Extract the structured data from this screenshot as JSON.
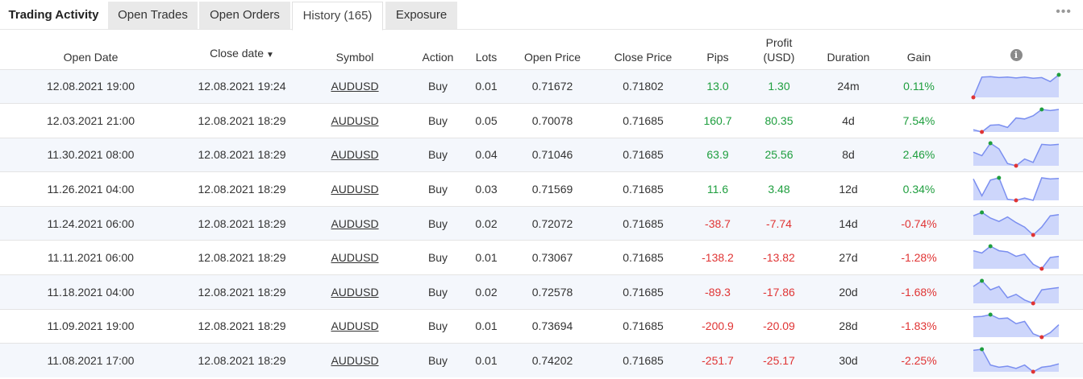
{
  "tabs": {
    "title": "Trading Activity",
    "items": [
      {
        "label": "Open Trades"
      },
      {
        "label": "Open Orders"
      },
      {
        "label": "History (165)"
      },
      {
        "label": "Exposure"
      }
    ],
    "more_icon": "more-dots-icon"
  },
  "columns": {
    "open_date": "Open Date",
    "close_date": "Close date",
    "sort_indicator": "▼",
    "symbol": "Symbol",
    "action": "Action",
    "lots": "Lots",
    "open_price": "Open Price",
    "close_price": "Close Price",
    "pips": "Pips",
    "profit_line1": "Profit",
    "profit_line2": "(USD)",
    "duration": "Duration",
    "gain": "Gain",
    "info_icon": "info-icon"
  },
  "colors": {
    "positive": "#1e9e3e",
    "negative": "#e03434",
    "spark_line": "#7b8ff0",
    "spark_fill": "#cdd6fb"
  },
  "rows": [
    {
      "open_date": "12.08.2021 19:00",
      "close_date": "12.08.2021 19:24",
      "symbol": "AUDUSD",
      "action": "Buy",
      "lots": "0.01",
      "open_price": "0.71672",
      "close_price": "0.71802",
      "pips": "13.0",
      "profit": "1.30",
      "duration": "24m",
      "gain": "0.11%",
      "positive": true,
      "spark": [
        0.0,
        0.9,
        0.92,
        0.88,
        0.9,
        0.86,
        0.9,
        0.85,
        0.88,
        0.7,
        1.0
      ]
    },
    {
      "open_date": "12.03.2021 21:00",
      "close_date": "12.08.2021 18:29",
      "symbol": "AUDUSD",
      "action": "Buy",
      "lots": "0.05",
      "open_price": "0.70078",
      "close_price": "0.71685",
      "pips": "160.7",
      "profit": "80.35",
      "duration": "4d",
      "gain": "7.54%",
      "positive": true,
      "spark": [
        0.1,
        0.0,
        0.3,
        0.32,
        0.2,
        0.62,
        0.58,
        0.72,
        1.0,
        0.95,
        1.0
      ]
    },
    {
      "open_date": "11.30.2021 08:00",
      "close_date": "12.08.2021 18:29",
      "symbol": "AUDUSD",
      "action": "Buy",
      "lots": "0.04",
      "open_price": "0.71046",
      "close_price": "0.71685",
      "pips": "63.9",
      "profit": "25.56",
      "duration": "8d",
      "gain": "2.46%",
      "positive": true,
      "spark": [
        0.6,
        0.45,
        1.0,
        0.75,
        0.1,
        0.0,
        0.3,
        0.15,
        0.95,
        0.92,
        0.95
      ]
    },
    {
      "open_date": "11.26.2021 04:00",
      "close_date": "12.08.2021 18:29",
      "symbol": "AUDUSD",
      "action": "Buy",
      "lots": "0.03",
      "open_price": "0.71569",
      "close_price": "0.71685",
      "pips": "11.6",
      "profit": "3.48",
      "duration": "12d",
      "gain": "0.34%",
      "positive": true,
      "spark": [
        0.95,
        0.2,
        0.9,
        1.0,
        0.05,
        0.0,
        0.1,
        0.0,
        1.0,
        0.95,
        0.97
      ]
    },
    {
      "open_date": "11.24.2021 06:00",
      "close_date": "12.08.2021 18:29",
      "symbol": "AUDUSD",
      "action": "Buy",
      "lots": "0.02",
      "open_price": "0.72072",
      "close_price": "0.71685",
      "pips": "-38.7",
      "profit": "-7.74",
      "duration": "14d",
      "gain": "-0.74%",
      "positive": false,
      "spark": [
        0.85,
        1.0,
        0.75,
        0.6,
        0.8,
        0.55,
        0.35,
        0.0,
        0.35,
        0.85,
        0.9
      ]
    },
    {
      "open_date": "11.11.2021 06:00",
      "close_date": "12.08.2021 18:29",
      "symbol": "AUDUSD",
      "action": "Buy",
      "lots": "0.01",
      "open_price": "0.73067",
      "close_price": "0.71685",
      "pips": "-138.2",
      "profit": "-13.82",
      "duration": "27d",
      "gain": "-1.28%",
      "positive": false,
      "spark": [
        0.8,
        0.7,
        1.0,
        0.8,
        0.75,
        0.55,
        0.65,
        0.2,
        0.0,
        0.5,
        0.55
      ]
    },
    {
      "open_date": "11.18.2021 04:00",
      "close_date": "12.08.2021 18:29",
      "symbol": "AUDUSD",
      "action": "Buy",
      "lots": "0.02",
      "open_price": "0.72578",
      "close_price": "0.71685",
      "pips": "-89.3",
      "profit": "-17.86",
      "duration": "20d",
      "gain": "-1.68%",
      "positive": false,
      "spark": [
        0.75,
        1.0,
        0.6,
        0.75,
        0.25,
        0.4,
        0.15,
        0.0,
        0.6,
        0.65,
        0.7
      ]
    },
    {
      "open_date": "11.09.2021 19:00",
      "close_date": "12.08.2021 18:29",
      "symbol": "AUDUSD",
      "action": "Buy",
      "lots": "0.01",
      "open_price": "0.73694",
      "close_price": "0.71685",
      "pips": "-200.9",
      "profit": "-20.09",
      "duration": "28d",
      "gain": "-1.83%",
      "positive": false,
      "spark": [
        0.9,
        0.92,
        1.0,
        0.82,
        0.85,
        0.6,
        0.7,
        0.15,
        0.0,
        0.2,
        0.55
      ]
    },
    {
      "open_date": "11.08.2021 17:00",
      "close_date": "12.08.2021 18:29",
      "symbol": "AUDUSD",
      "action": "Buy",
      "lots": "0.01",
      "open_price": "0.74202",
      "close_price": "0.71685",
      "pips": "-251.7",
      "profit": "-25.17",
      "duration": "30d",
      "gain": "-2.25%",
      "positive": false,
      "spark": [
        0.95,
        1.0,
        0.3,
        0.2,
        0.25,
        0.15,
        0.3,
        0.0,
        0.2,
        0.25,
        0.35
      ]
    }
  ]
}
